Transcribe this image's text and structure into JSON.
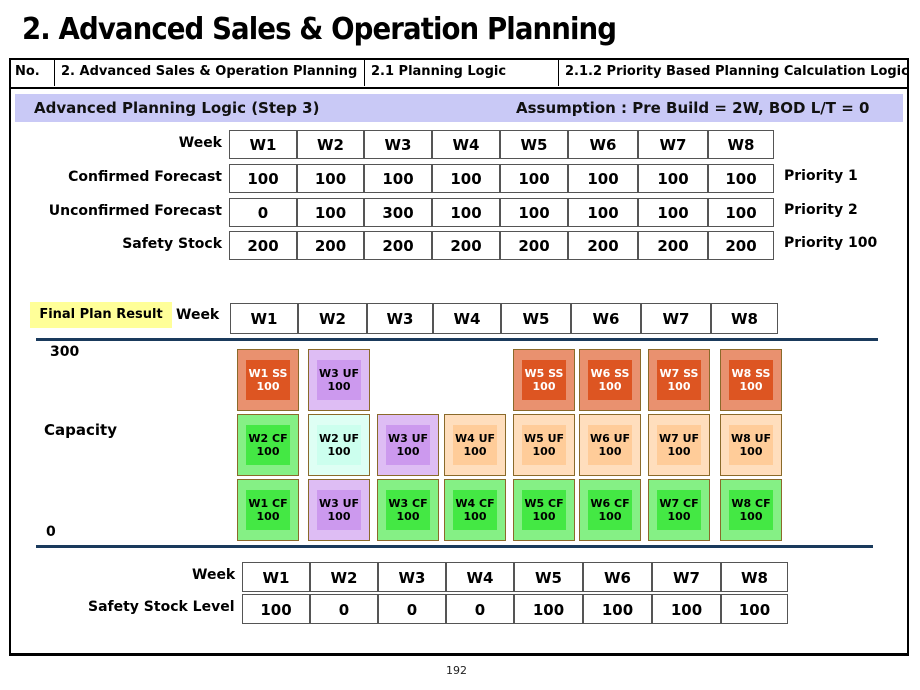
{
  "title": "2. Advanced Sales & Operation Planning",
  "header": {
    "no_label": "No.",
    "section": "2. Advanced Sales & Operation Planning",
    "subsection": "2.1 Planning Logic",
    "subsubsection": "2.1.2 Priority Based Planning Calculation Logic"
  },
  "step": {
    "title": "Advanced Planning Logic (Step 3)",
    "assumption": "Assumption : Pre Build = 2W,  BOD L/T = 0"
  },
  "input_table": {
    "week_label": "Week",
    "weeks": [
      "W1",
      "W2",
      "W3",
      "W4",
      "W5",
      "W6",
      "W7",
      "W8"
    ],
    "rows": [
      {
        "label": "Confirmed Forecast",
        "values": [
          "100",
          "100",
          "100",
          "100",
          "100",
          "100",
          "100",
          "100"
        ],
        "priority": "Priority 1"
      },
      {
        "label": "Unconfirmed Forecast",
        "values": [
          "0",
          "100",
          "300",
          "100",
          "100",
          "100",
          "100",
          "100"
        ],
        "priority": "Priority 2"
      },
      {
        "label": "Safety Stock",
        "values": [
          "200",
          "200",
          "200",
          "200",
          "200",
          "200",
          "200",
          "200"
        ],
        "priority": "Priority 100"
      }
    ]
  },
  "final_plan": {
    "badge": "Final Plan Result",
    "week_label": "Week",
    "weeks": [
      "W1",
      "W2",
      "W3",
      "W4",
      "W5",
      "W6",
      "W7",
      "W8"
    ],
    "axis_top": "300",
    "axis_mid": "Capacity",
    "axis_bottom": "0",
    "colors": {
      "cf": "#44e844",
      "uf_confirmed_week": "#ccffee",
      "uf_w3": "#cc99ee",
      "uf_other": "#ffcc99",
      "ss": "#dd5522"
    },
    "columns": [
      {
        "top": {
          "label": "W1 SS",
          "value": "100",
          "kind": "ss"
        },
        "mid": {
          "label": "W2 CF",
          "value": "100",
          "kind": "cf"
        },
        "bot": {
          "label": "W1 CF",
          "value": "100",
          "kind": "cf"
        }
      },
      {
        "top": {
          "label": "W3 UF",
          "value": "100",
          "kind": "uf_w3"
        },
        "mid": {
          "label": "W2 UF",
          "value": "100",
          "kind": "uf_confirmed_week"
        },
        "bot": {
          "label": "W3 UF",
          "value": "100",
          "kind": "uf_w3"
        }
      },
      {
        "top": null,
        "mid": {
          "label": "W3 UF",
          "value": "100",
          "kind": "uf_w3"
        },
        "bot": {
          "label": "W3 CF",
          "value": "100",
          "kind": "cf"
        }
      },
      {
        "top": null,
        "mid": {
          "label": "W4 UF",
          "value": "100",
          "kind": "uf_other"
        },
        "bot": {
          "label": "W4 CF",
          "value": "100",
          "kind": "cf"
        }
      },
      {
        "top": {
          "label": "W5 SS",
          "value": "100",
          "kind": "ss"
        },
        "mid": {
          "label": "W5 UF",
          "value": "100",
          "kind": "uf_other"
        },
        "bot": {
          "label": "W5 CF",
          "value": "100",
          "kind": "cf"
        }
      },
      {
        "top": {
          "label": "W6 SS",
          "value": "100",
          "kind": "ss"
        },
        "mid": {
          "label": "W6 UF",
          "value": "100",
          "kind": "uf_other"
        },
        "bot": {
          "label": "W6 CF",
          "value": "100",
          "kind": "cf"
        }
      },
      {
        "top": {
          "label": "W7 SS",
          "value": "100",
          "kind": "ss"
        },
        "mid": {
          "label": "W7 UF",
          "value": "100",
          "kind": "uf_other"
        },
        "bot": {
          "label": "W7 CF",
          "value": "100",
          "kind": "cf"
        }
      },
      {
        "top": {
          "label": "W8 SS",
          "value": "100",
          "kind": "ss"
        },
        "mid": {
          "label": "W8 UF",
          "value": "100",
          "kind": "uf_other"
        },
        "bot": {
          "label": "W8 CF",
          "value": "100",
          "kind": "cf"
        }
      }
    ]
  },
  "safety_table": {
    "week_label": "Week",
    "weeks": [
      "W1",
      "W2",
      "W3",
      "W4",
      "W5",
      "W6",
      "W7",
      "W8"
    ],
    "row_label": "Safety Stock Level",
    "values": [
      "100",
      "0",
      "0",
      "0",
      "100",
      "100",
      "100",
      "100"
    ]
  },
  "page_number": "192"
}
